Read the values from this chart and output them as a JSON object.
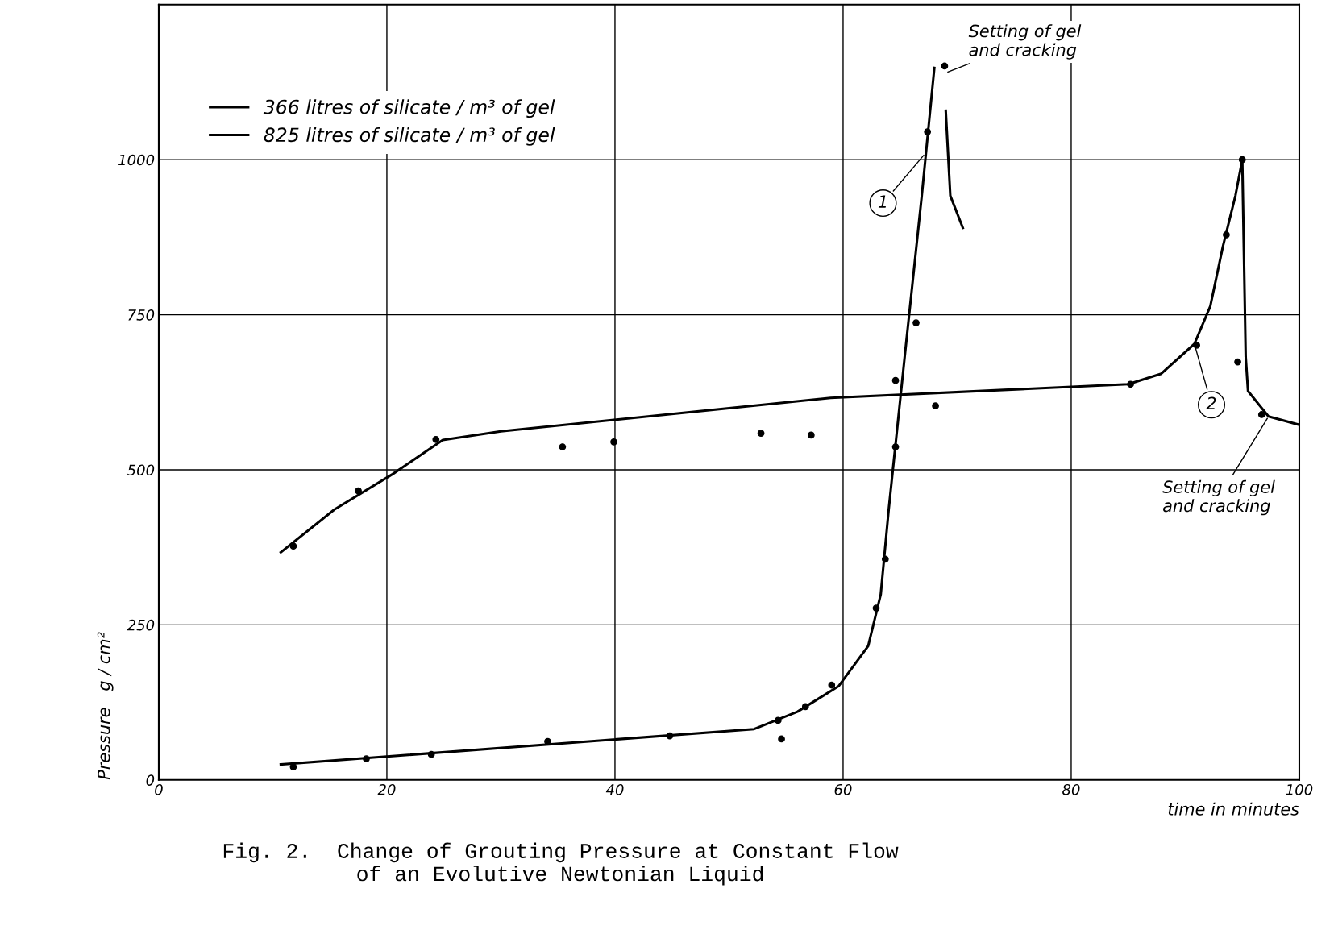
{
  "chart_data": {
    "type": "line",
    "title": "Fig. 2.  Change of Grouting Pressure at Constant Flow\nof an Evolutive Newtonian Liquid",
    "xlabel": "time in minutes",
    "ylabel": "Pressure   g / cm²",
    "xlim": [
      0,
      100
    ],
    "ylim": [
      0,
      1250
    ],
    "xticks": [
      0,
      20,
      40,
      60,
      80,
      100
    ],
    "yticks": [
      0,
      250,
      500,
      750,
      1000
    ],
    "grid": true,
    "legend": "top left",
    "series": [
      {
        "name": "366 litres of silicate / m³ of gel",
        "color": "#000000",
        "marker": "none",
        "x": [
          10.7,
          52.2,
          56,
          59.6,
          62.2,
          63.3,
          64,
          65.4,
          66.9,
          68,
          68.8,
          68.9,
          69,
          69.4,
          70.5
        ],
        "values": [
          25,
          82,
          110,
          151,
          216,
          299,
          436,
          682,
          942,
          1148,
          null,
          null,
          1079,
          942,
          890
        ]
      },
      {
        "type": "scatter",
        "color": "#000000",
        "marker": "circle",
        "x": [
          11.8,
          18.2,
          23.9,
          34.1,
          44.8,
          54.3,
          54.6,
          56.7,
          59,
          62.9,
          63.7,
          64.6,
          64.6,
          66.4,
          67.4,
          68.9
        ],
        "values": [
          21,
          34,
          41,
          62,
          71,
          96,
          66,
          118,
          153,
          277,
          356,
          537,
          644,
          737,
          1045,
          1151
        ]
      },
      {
        "name": "825 litres of silicate / m³ of gel",
        "color": "#000000",
        "marker": "none",
        "x": [
          10.7,
          15.4,
          20.5,
          24.9,
          30,
          58.9,
          85,
          87.9,
          90.8,
          92.2,
          93.3,
          94.4,
          95,
          95.3,
          95.5,
          97.3,
          99.9
        ],
        "values": [
          367,
          436,
          493,
          548,
          562,
          616,
          638,
          655,
          703,
          764,
          860,
          942,
          1000,
          682,
          627,
          586,
          573
        ]
      },
      {
        "type": "scatter",
        "color": "#000000",
        "marker": "circle",
        "x": [
          11.8,
          17.5,
          24.3,
          35.4,
          39.9,
          52.8,
          57.2,
          68.1,
          85.2,
          91,
          93.6,
          94.6,
          95,
          96.7
        ],
        "values": [
          377,
          466,
          549,
          537,
          545,
          559,
          556,
          603,
          638,
          701,
          879,
          674,
          1000,
          589
        ]
      }
    ],
    "annotations": [
      {
        "text": "Setting of gel\nand cracking",
        "x": 69.0,
        "y": 1140
      },
      {
        "text": "Setting of gel\nand cracking",
        "x": 97.3,
        "y": 586
      },
      {
        "text": "1",
        "x": 67.2,
        "y": 1010
      },
      {
        "text": "2",
        "x": 90.8,
        "y": 703
      }
    ]
  }
}
